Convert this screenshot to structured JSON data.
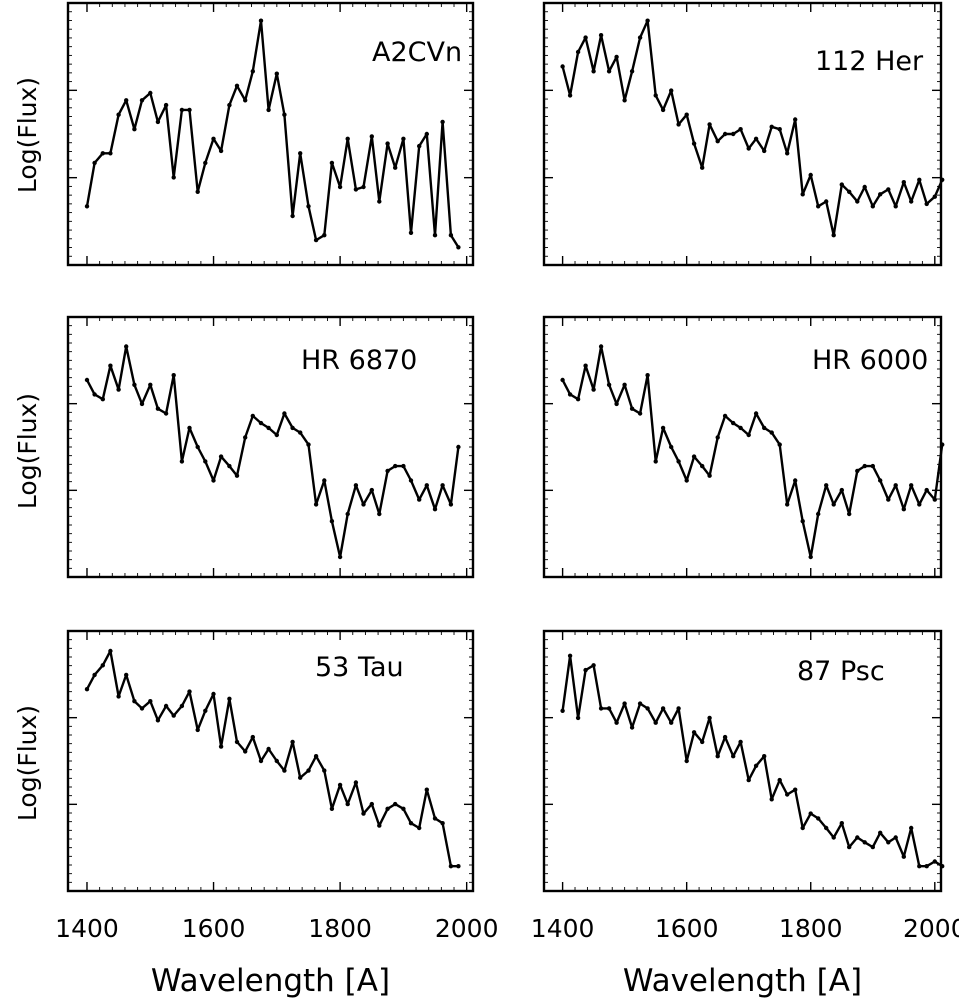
{
  "chart_data": [
    {
      "type": "line",
      "label": "A2CVn",
      "ylabel": "Log(Flux)",
      "xlabel": "",
      "xlim": [
        1370,
        2010
      ],
      "ylim": [
        0,
        1
      ],
      "x": [
        1400,
        1412,
        1425,
        1437,
        1450,
        1462,
        1475,
        1487,
        1500,
        1512,
        1525,
        1537,
        1550,
        1562,
        1575,
        1587,
        1600,
        1612,
        1625,
        1637,
        1650,
        1662,
        1675,
        1687,
        1700,
        1712,
        1725,
        1737,
        1750,
        1762,
        1775,
        1787,
        1800,
        1812,
        1825,
        1837,
        1850,
        1862,
        1875,
        1887,
        1900,
        1912,
        1925,
        1937,
        1950,
        1962,
        1975,
        1987
      ],
      "values": [
        0.2,
        0.38,
        0.42,
        0.42,
        0.58,
        0.64,
        0.52,
        0.64,
        0.67,
        0.55,
        0.62,
        0.32,
        0.6,
        0.6,
        0.26,
        0.38,
        0.48,
        0.43,
        0.62,
        0.7,
        0.64,
        0.76,
        0.97,
        0.6,
        0.75,
        0.58,
        0.16,
        0.42,
        0.2,
        0.06,
        0.08,
        0.38,
        0.28,
        0.48,
        0.27,
        0.28,
        0.49,
        0.22,
        0.46,
        0.36,
        0.48,
        0.09,
        0.45,
        0.5,
        0.08,
        0.55,
        0.08,
        0.03
      ]
    },
    {
      "type": "line",
      "label": "112 Her",
      "ylabel": "",
      "xlabel": "",
      "xlim": [
        1370,
        2010
      ],
      "ylim": [
        0,
        1
      ],
      "x": [
        1400,
        1412,
        1425,
        1437,
        1450,
        1462,
        1475,
        1487,
        1500,
        1512,
        1525,
        1537,
        1550,
        1562,
        1575,
        1587,
        1600,
        1612,
        1625,
        1637,
        1650,
        1662,
        1675,
        1687,
        1700,
        1712,
        1725,
        1737,
        1750,
        1762,
        1775,
        1787,
        1800,
        1812,
        1825,
        1837,
        1850,
        1862,
        1875,
        1887,
        1900,
        1912,
        1925,
        1937,
        1950,
        1962,
        1975,
        1987,
        2000,
        2012
      ],
      "values": [
        0.78,
        0.66,
        0.84,
        0.9,
        0.76,
        0.91,
        0.76,
        0.82,
        0.64,
        0.76,
        0.9,
        0.97,
        0.66,
        0.6,
        0.68,
        0.54,
        0.58,
        0.46,
        0.36,
        0.54,
        0.47,
        0.5,
        0.5,
        0.52,
        0.44,
        0.48,
        0.43,
        0.53,
        0.52,
        0.42,
        0.56,
        0.25,
        0.33,
        0.2,
        0.22,
        0.08,
        0.29,
        0.26,
        0.22,
        0.28,
        0.2,
        0.25,
        0.27,
        0.2,
        0.3,
        0.22,
        0.31,
        0.21,
        0.24,
        0.31
      ]
    },
    {
      "type": "line",
      "label": "HR 6870",
      "ylabel": "Log(Flux)",
      "xlabel": "",
      "xlim": [
        1370,
        2010
      ],
      "ylim": [
        0,
        1
      ],
      "x": [
        1400,
        1412,
        1425,
        1437,
        1450,
        1462,
        1475,
        1487,
        1500,
        1512,
        1525,
        1537,
        1550,
        1562,
        1575,
        1587,
        1600,
        1612,
        1625,
        1637,
        1650,
        1662,
        1675,
        1687,
        1700,
        1712,
        1725,
        1737,
        1750,
        1762,
        1775,
        1787,
        1800,
        1812,
        1825,
        1837,
        1850,
        1862,
        1875,
        1887,
        1900,
        1912,
        1925,
        1937,
        1950,
        1962,
        1975,
        1987
      ],
      "values": [
        0.78,
        0.72,
        0.7,
        0.84,
        0.74,
        0.92,
        0.76,
        0.68,
        0.76,
        0.66,
        0.64,
        0.8,
        0.44,
        0.58,
        0.5,
        0.44,
        0.36,
        0.46,
        0.42,
        0.38,
        0.54,
        0.63,
        0.6,
        0.58,
        0.55,
        0.64,
        0.58,
        0.56,
        0.51,
        0.26,
        0.36,
        0.19,
        0.04,
        0.22,
        0.34,
        0.26,
        0.32,
        0.22,
        0.4,
        0.42,
        0.42,
        0.36,
        0.28,
        0.34,
        0.24,
        0.34,
        0.26,
        0.5
      ]
    },
    {
      "type": "line",
      "label": "HR 6000",
      "ylabel": "",
      "xlabel": "",
      "xlim": [
        1370,
        2010
      ],
      "ylim": [
        0,
        1
      ],
      "x": [
        1400,
        1412,
        1425,
        1437,
        1450,
        1462,
        1475,
        1487,
        1500,
        1512,
        1525,
        1537,
        1550,
        1562,
        1575,
        1587,
        1600,
        1612,
        1625,
        1637,
        1650,
        1662,
        1675,
        1687,
        1700,
        1712,
        1725,
        1737,
        1750,
        1762,
        1775,
        1787,
        1800,
        1812,
        1825,
        1837,
        1850,
        1862,
        1875,
        1887,
        1900,
        1912,
        1925,
        1937,
        1950,
        1962,
        1975,
        1987,
        2000,
        2012
      ],
      "values": [
        0.78,
        0.72,
        0.7,
        0.84,
        0.74,
        0.92,
        0.76,
        0.68,
        0.76,
        0.66,
        0.64,
        0.8,
        0.44,
        0.58,
        0.5,
        0.44,
        0.36,
        0.46,
        0.42,
        0.38,
        0.54,
        0.63,
        0.6,
        0.58,
        0.55,
        0.64,
        0.58,
        0.56,
        0.51,
        0.26,
        0.36,
        0.19,
        0.04,
        0.22,
        0.34,
        0.26,
        0.32,
        0.22,
        0.4,
        0.42,
        0.42,
        0.36,
        0.28,
        0.34,
        0.24,
        0.34,
        0.26,
        0.32,
        0.28,
        0.51
      ]
    },
    {
      "type": "line",
      "label": "53 Tau",
      "ylabel": "Log(Flux)",
      "xlabel": "Wavelength [A]",
      "xlim": [
        1370,
        2010
      ],
      "ylim": [
        0,
        1
      ],
      "xticks": [
        1400,
        1600,
        1800,
        2000
      ],
      "x": [
        1400,
        1412,
        1425,
        1437,
        1450,
        1462,
        1475,
        1487,
        1500,
        1512,
        1525,
        1537,
        1550,
        1562,
        1575,
        1587,
        1600,
        1612,
        1625,
        1637,
        1650,
        1662,
        1675,
        1687,
        1700,
        1712,
        1725,
        1737,
        1750,
        1762,
        1775,
        1787,
        1800,
        1812,
        1825,
        1837,
        1850,
        1862,
        1875,
        1887,
        1900,
        1912,
        1925,
        1937,
        1950,
        1962,
        1975,
        1987
      ],
      "values": [
        0.8,
        0.86,
        0.9,
        0.96,
        0.77,
        0.86,
        0.75,
        0.72,
        0.75,
        0.67,
        0.73,
        0.69,
        0.73,
        0.79,
        0.63,
        0.71,
        0.78,
        0.56,
        0.76,
        0.58,
        0.54,
        0.6,
        0.5,
        0.55,
        0.5,
        0.46,
        0.58,
        0.43,
        0.46,
        0.52,
        0.46,
        0.3,
        0.4,
        0.32,
        0.41,
        0.28,
        0.32,
        0.23,
        0.3,
        0.32,
        0.3,
        0.24,
        0.22,
        0.38,
        0.26,
        0.24,
        0.06,
        0.06
      ]
    },
    {
      "type": "line",
      "label": "87 Psc",
      "ylabel": "",
      "xlabel": "Wavelength [A]",
      "xlim": [
        1370,
        2010
      ],
      "ylim": [
        0,
        1
      ],
      "xticks": [
        1400,
        1600,
        1800,
        2000
      ],
      "x": [
        1400,
        1412,
        1425,
        1437,
        1450,
        1462,
        1475,
        1487,
        1500,
        1512,
        1525,
        1537,
        1550,
        1562,
        1575,
        1587,
        1600,
        1612,
        1625,
        1637,
        1650,
        1662,
        1675,
        1687,
        1700,
        1712,
        1725,
        1737,
        1750,
        1762,
        1775,
        1787,
        1800,
        1812,
        1825,
        1837,
        1850,
        1862,
        1875,
        1887,
        1900,
        1912,
        1925,
        1937,
        1950,
        1962,
        1975,
        1987,
        2000,
        2012
      ],
      "values": [
        0.71,
        0.94,
        0.68,
        0.88,
        0.9,
        0.72,
        0.72,
        0.66,
        0.74,
        0.64,
        0.74,
        0.72,
        0.66,
        0.72,
        0.66,
        0.72,
        0.5,
        0.62,
        0.58,
        0.68,
        0.52,
        0.6,
        0.52,
        0.58,
        0.42,
        0.48,
        0.52,
        0.34,
        0.42,
        0.36,
        0.38,
        0.22,
        0.28,
        0.26,
        0.22,
        0.18,
        0.24,
        0.14,
        0.18,
        0.16,
        0.14,
        0.2,
        0.16,
        0.18,
        0.1,
        0.22,
        0.06,
        0.06,
        0.08,
        0.06
      ]
    }
  ]
}
